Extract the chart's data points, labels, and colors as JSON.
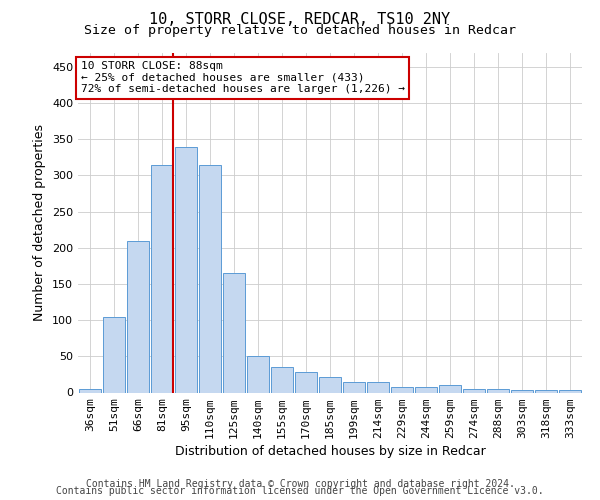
{
  "title1": "10, STORR CLOSE, REDCAR, TS10 2NY",
  "title2": "Size of property relative to detached houses in Redcar",
  "xlabel": "Distribution of detached houses by size in Redcar",
  "ylabel": "Number of detached properties",
  "categories": [
    "36sqm",
    "51sqm",
    "66sqm",
    "81sqm",
    "95sqm",
    "110sqm",
    "125sqm",
    "140sqm",
    "155sqm",
    "170sqm",
    "185sqm",
    "199sqm",
    "214sqm",
    "229sqm",
    "244sqm",
    "259sqm",
    "274sqm",
    "288sqm",
    "303sqm",
    "318sqm",
    "333sqm"
  ],
  "values": [
    5,
    105,
    210,
    315,
    340,
    315,
    165,
    50,
    35,
    28,
    22,
    15,
    15,
    8,
    8,
    10,
    5,
    5,
    3,
    3,
    3
  ],
  "bar_color": "#c5d8f0",
  "bar_edge_color": "#5b9bd5",
  "vline_x": 3.47,
  "vline_color": "#cc0000",
  "annotation_text": "10 STORR CLOSE: 88sqm\n← 25% of detached houses are smaller (433)\n72% of semi-detached houses are larger (1,226) →",
  "annotation_box_color": "#ffffff",
  "annotation_box_edge_color": "#cc0000",
  "ylim": [
    0,
    470
  ],
  "yticks": [
    0,
    50,
    100,
    150,
    200,
    250,
    300,
    350,
    400,
    450
  ],
  "footer1": "Contains HM Land Registry data © Crown copyright and database right 2024.",
  "footer2": "Contains public sector information licensed under the Open Government Licence v3.0.",
  "background_color": "#ffffff",
  "grid_color": "#cccccc",
  "title1_fontsize": 11,
  "title2_fontsize": 9.5,
  "xlabel_fontsize": 9,
  "ylabel_fontsize": 9,
  "tick_fontsize": 8,
  "annotation_fontsize": 8,
  "footer_fontsize": 7
}
